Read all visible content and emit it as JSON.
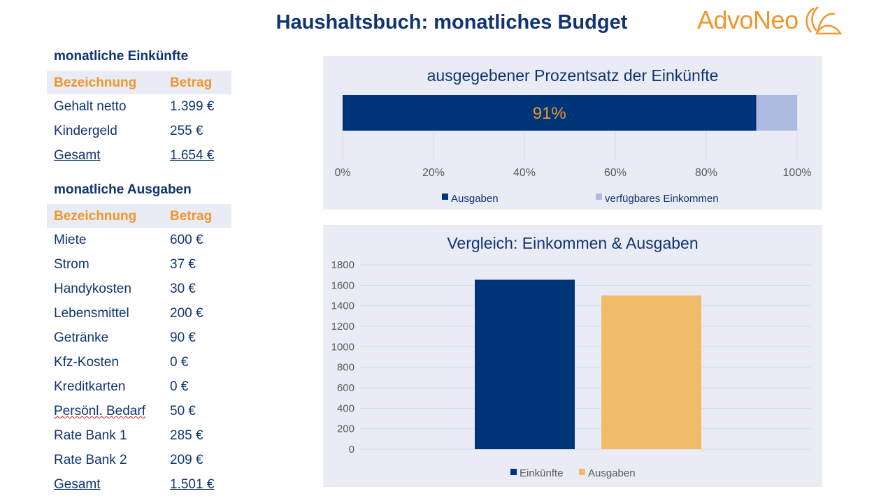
{
  "title": "Haushaltsbuch: monatliches Budget",
  "logo": {
    "text": "AdvoNeo"
  },
  "colors": {
    "navy": "#0f3470",
    "orange": "#f0962b",
    "bar_navy": "#003478",
    "bar_light": "#aebadf",
    "bar_orange": "#f0bb6b",
    "panel": "#e9ecf5"
  },
  "income": {
    "heading": "monatliche Einkünfte",
    "col_name": "Bezeichnung",
    "col_amount": "Betrag",
    "rows": [
      {
        "name": "Gehalt netto",
        "amount": "1.399 €"
      },
      {
        "name": "Kindergeld",
        "amount": "255 €"
      }
    ],
    "total": {
      "name": "Gesamt",
      "amount": "1.654 €"
    }
  },
  "expenses": {
    "heading": "monatliche Ausgaben",
    "col_name": "Bezeichnung",
    "col_amount": "Betrag",
    "rows": [
      {
        "name": "Miete",
        "amount": "600 €"
      },
      {
        "name": "Strom",
        "amount": "37 €"
      },
      {
        "name": "Handykosten",
        "amount": "30 €"
      },
      {
        "name": "Lebensmittel",
        "amount": "200 €"
      },
      {
        "name": "Getränke",
        "amount": "90 €"
      },
      {
        "name": "Kfz-Kosten",
        "amount": "0 €"
      },
      {
        "name": "Kreditkarten",
        "amount": "0 €"
      },
      {
        "name": "Persönl. Bedarf",
        "amount": "50 €"
      },
      {
        "name": "Rate Bank 1",
        "amount": "285 €"
      },
      {
        "name": "Rate Bank 2",
        "amount": "209 €"
      }
    ],
    "total": {
      "name": "Gesamt",
      "amount": "1.501 €"
    }
  },
  "chart_data": [
    {
      "type": "bar",
      "orientation": "horizontal",
      "stacked": true,
      "title": "ausgegebener Prozentsatz der Einkünfte",
      "series": [
        {
          "name": "Ausgaben",
          "value": 91
        },
        {
          "name": "verfügbares Einkommen",
          "value": 9
        }
      ],
      "data_label": "91%",
      "xlim": [
        0,
        100
      ],
      "ticks": [
        "0%",
        "20%",
        "40%",
        "60%",
        "80%",
        "100%"
      ],
      "grid": true,
      "legend": "bottom"
    },
    {
      "type": "bar",
      "title": "Vergleich: Einkommen & Ausgaben",
      "categories": [
        "Einkünfte",
        "Ausgaben"
      ],
      "values": [
        1654,
        1501
      ],
      "ylim": [
        0,
        1800
      ],
      "ticks": [
        "0",
        "200",
        "400",
        "600",
        "800",
        "1000",
        "1200",
        "1400",
        "1600",
        "1800"
      ],
      "grid": true,
      "legend": "bottom"
    }
  ]
}
